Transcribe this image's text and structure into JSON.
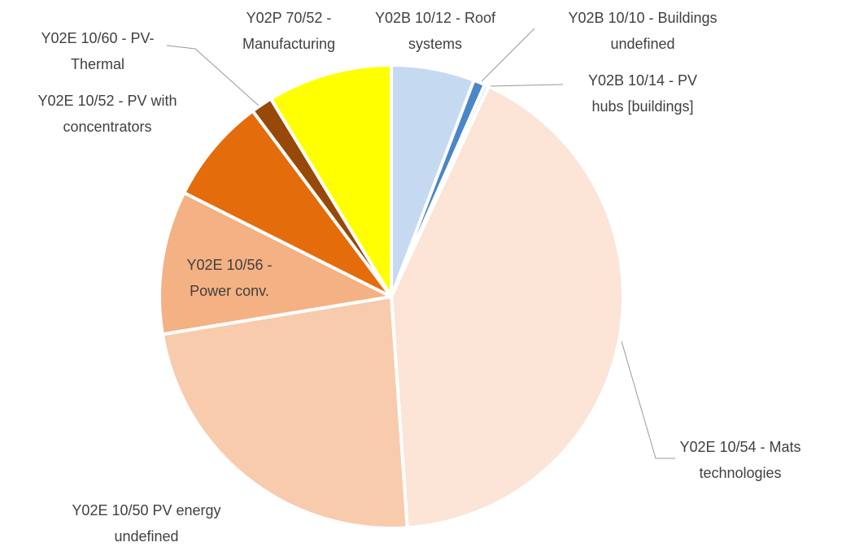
{
  "chart_data": {
    "type": "pie",
    "categories": [
      "Y02B  10/12 - Roof\nsystems",
      "Y02B  10/10  - Buildings\nundefined",
      "Y02B  10/14  - PV\nhubs [buildings]",
      "Y02E  10/54 - Mats\ntechnologies",
      "Y02E 10/50  PV energy\nundefined",
      "Y02E  10/56 -\nPower conv.",
      "Y02E  10/52 - PV with\nconcentrators",
      "Y02E  10/60 - PV-\nThermal",
      "Y02P  70/52 -\nManufacturing"
    ],
    "values": [
      5.8,
      0.8,
      0.3,
      42,
      23.5,
      10,
      7.4,
      1.5,
      8.7
    ],
    "colors": [
      "#c5d9f1",
      "#4a86c8",
      "#dce6f2",
      "#fce4d6",
      "#f8cbad",
      "#f4b183",
      "#e46c0a",
      "#984807",
      "#ffff00"
    ]
  }
}
